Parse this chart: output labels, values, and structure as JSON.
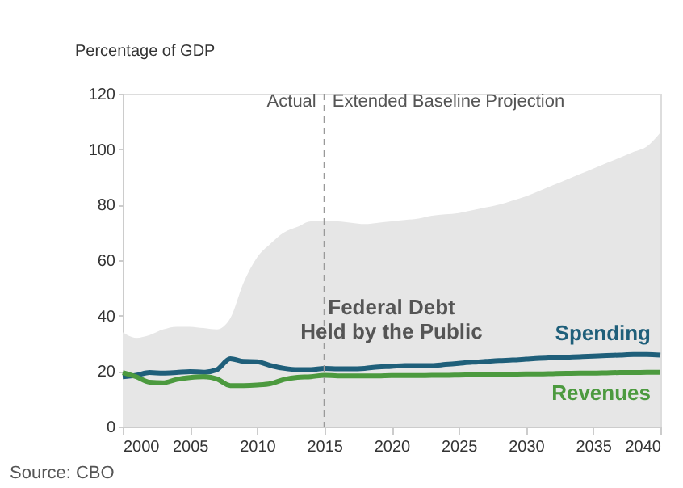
{
  "chart_data": {
    "type": "line",
    "ylabel": "Percentage of GDP",
    "x": [
      2000,
      2001,
      2002,
      2003,
      2004,
      2005,
      2006,
      2007,
      2008,
      2009,
      2010,
      2011,
      2012,
      2013,
      2014,
      2015,
      2016,
      2017,
      2018,
      2019,
      2020,
      2021,
      2022,
      2023,
      2024,
      2025,
      2026,
      2027,
      2028,
      2029,
      2030,
      2031,
      2032,
      2033,
      2034,
      2035,
      2036,
      2037,
      2038,
      2039,
      2040
    ],
    "series": [
      {
        "name": "Federal Debt Held by the Public",
        "type": "area",
        "color": "#e6e6e6",
        "values": [
          34,
          32,
          33,
          35,
          36,
          36,
          35.5,
          35,
          39,
          52,
          61,
          66,
          70,
          72,
          74,
          74,
          74,
          73.5,
          73,
          73.5,
          74,
          74.5,
          75,
          76,
          76.5,
          77,
          78,
          79,
          80,
          81.5,
          83,
          85,
          87,
          89,
          91,
          93,
          95,
          97,
          99,
          101,
          106
        ]
      },
      {
        "name": "Spending",
        "type": "line",
        "color": "#1f5f7a",
        "values": [
          18,
          18.5,
          19.5,
          19.3,
          19.5,
          19.8,
          19.6,
          20.5,
          24.5,
          23.5,
          23.4,
          22,
          21,
          20.5,
          20.5,
          21,
          20.8,
          20.8,
          21,
          21.5,
          21.7,
          22,
          22,
          22,
          22.4,
          22.8,
          23.2,
          23.5,
          23.8,
          24,
          24.3,
          24.6,
          24.8,
          25,
          25.2,
          25.4,
          25.6,
          25.8,
          26,
          26,
          25.8
        ]
      },
      {
        "name": "Revenues",
        "type": "line",
        "color": "#4c9a3f",
        "values": [
          19.5,
          18,
          16,
          15.8,
          17,
          17.7,
          18,
          17.2,
          14.8,
          14.8,
          15,
          15.5,
          17,
          17.8,
          18,
          18.5,
          18.3,
          18.3,
          18.3,
          18.3,
          18.4,
          18.4,
          18.4,
          18.5,
          18.5,
          18.6,
          18.7,
          18.8,
          18.8,
          18.9,
          19,
          19,
          19.1,
          19.2,
          19.3,
          19.3,
          19.4,
          19.5,
          19.5,
          19.6,
          19.6
        ]
      }
    ],
    "xlim": [
      2000,
      2040
    ],
    "xticks": [
      2000,
      2005,
      2010,
      2015,
      2020,
      2025,
      2030,
      2035,
      2040
    ],
    "ylim": [
      0,
      120
    ],
    "yticks": [
      0,
      20,
      40,
      60,
      80,
      100,
      120
    ],
    "grid": false,
    "legend": false,
    "line_style": "solid",
    "ref_lines": [
      {
        "axis": "x",
        "value": 2015,
        "color": "#999999",
        "line_style": "dashed"
      }
    ],
    "annotations": [
      {
        "text": "Actual",
        "x": 2015,
        "y": 117
      },
      {
        "text": "Extended Baseline Projection",
        "x": 2015,
        "y": 117
      },
      "Source: CBO"
    ]
  }
}
